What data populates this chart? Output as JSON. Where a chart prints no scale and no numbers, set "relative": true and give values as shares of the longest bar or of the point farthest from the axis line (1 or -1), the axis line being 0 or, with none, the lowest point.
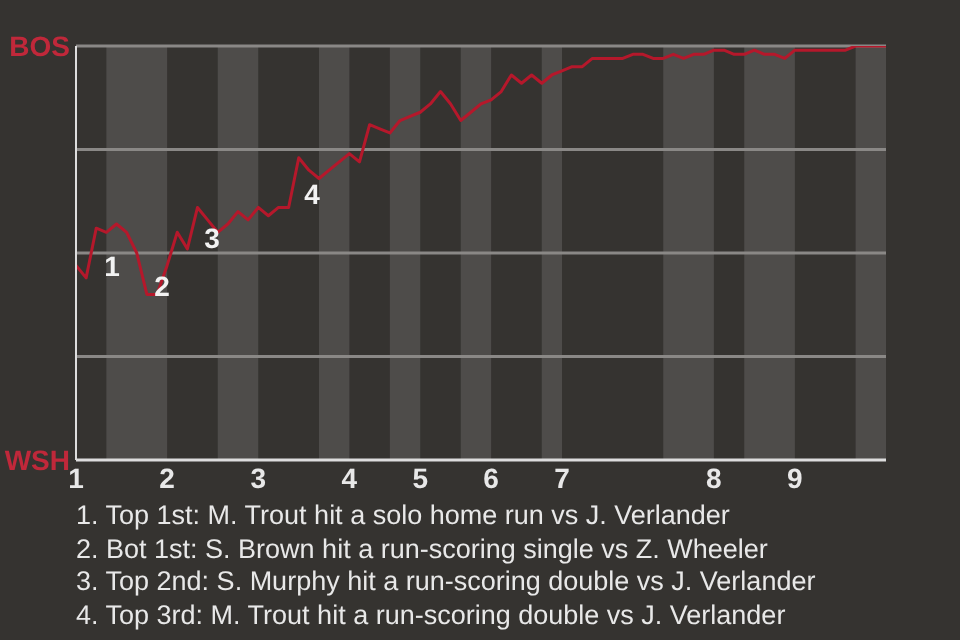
{
  "chart_data": {
    "type": "line",
    "relative": true,
    "categories": [
      "1",
      null,
      null,
      null,
      null,
      null,
      null,
      null,
      null,
      "2",
      null,
      null,
      null,
      null,
      null,
      null,
      null,
      null,
      "3",
      null,
      null,
      null,
      null,
      null,
      null,
      null,
      null,
      "4",
      null,
      null,
      null,
      null,
      null,
      null,
      "5",
      null,
      null,
      null,
      null,
      null,
      null,
      "6",
      null,
      null,
      null,
      null,
      null,
      null,
      "7",
      null,
      null,
      null,
      null,
      null,
      null,
      null,
      null,
      null,
      null,
      null,
      null,
      null,
      null,
      "8",
      null,
      null,
      null,
      null,
      null,
      null,
      null,
      "9",
      null,
      null,
      null,
      null,
      null,
      null,
      null,
      null,
      null
    ],
    "series": [
      {
        "color": "#b5182b",
        "values": [
          0.47,
          0.44,
          0.56,
          0.55,
          0.57,
          0.55,
          0.5,
          0.4,
          0.4,
          0.47,
          0.55,
          0.51,
          0.61,
          0.58,
          0.55,
          0.57,
          0.6,
          0.58,
          0.61,
          0.59,
          0.61,
          0.61,
          0.73,
          0.7,
          0.68,
          0.7,
          0.72,
          0.74,
          0.72,
          0.81,
          0.8,
          0.79,
          0.82,
          0.83,
          0.84,
          0.86,
          0.89,
          0.86,
          0.82,
          0.84,
          0.86,
          0.87,
          0.89,
          0.93,
          0.91,
          0.93,
          0.91,
          0.93,
          0.94,
          0.95,
          0.95,
          0.97,
          0.97,
          0.97,
          0.97,
          0.98,
          0.98,
          0.97,
          0.97,
          0.98,
          0.97,
          0.98,
          0.98,
          0.99,
          0.99,
          0.98,
          0.98,
          0.99,
          0.98,
          0.98,
          0.97,
          0.99,
          0.99,
          0.99,
          0.99,
          0.99,
          0.99,
          1,
          1,
          1,
          1
        ]
      }
    ],
    "marker": "none",
    "ref_lines": [
      {
        "axis": "y",
        "value": 1,
        "label": "BOS",
        "color": "#8a8886"
      },
      {
        "axis": "y",
        "value": 0.75,
        "label": null,
        "color": "#8a8886"
      },
      {
        "axis": "y",
        "value": 0.5,
        "label": null,
        "color": "#8a8886"
      },
      {
        "axis": "y",
        "value": 0.25,
        "label": null,
        "color": "#8a8886"
      }
    ],
    "annotations": [
      "1",
      "2",
      "3",
      "4",
      "WSH",
      "1. Top 1st: M. Trout hit a solo home run vs J. Verlander",
      "2. Bot 1st: S. Brown hit a run-scoring single vs Z. Wheeler",
      "3. Top 2nd: S. Murphy hit a run-scoring double vs J. Verlander",
      "4. Top 3rd: M. Trout hit a run-scoring double vs J. Verlander"
    ]
  }
}
